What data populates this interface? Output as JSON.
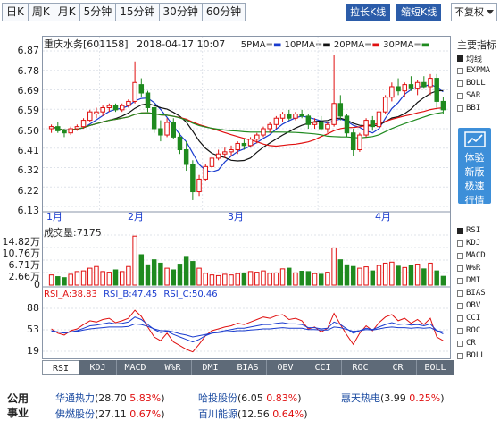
{
  "period_tabs": [
    {
      "label": "日K",
      "active": true
    },
    {
      "label": "周K",
      "active": false
    },
    {
      "label": "月K",
      "active": false
    },
    {
      "label": "5分钟",
      "active": false
    },
    {
      "label": "15分钟",
      "active": false
    },
    {
      "label": "30分钟",
      "active": false
    },
    {
      "label": "60分钟",
      "active": false
    }
  ],
  "toolbar": {
    "stretch_label": "拉长K线",
    "shrink_label": "缩短K线",
    "restore_option": "不复权"
  },
  "header": {
    "stock": "重庆水务[601158]",
    "datetime": "2018-04-17 10:07",
    "ma": [
      {
        "label": "5PMA=",
        "color": "#1a3ccf"
      },
      {
        "label": "10PMA=",
        "color": "#111111"
      },
      {
        "label": "20PMA=",
        "color": "#e01010"
      },
      {
        "label": "30PMA=",
        "color": "#1f8a1f"
      }
    ]
  },
  "price_axis": [
    "6.87",
    "6.78",
    "6.69",
    "6.59",
    "6.50",
    "6.41",
    "6.32",
    "6.22",
    "6.13"
  ],
  "month_labels": [
    "1月",
    "2月",
    "3月",
    "4月"
  ],
  "volume": {
    "title": "成交量:7175",
    "axis": [
      "14.82万",
      "10.76万",
      "6.71万",
      "2.66万",
      "0"
    ]
  },
  "rsi": {
    "label_a": "RSI_A:38.83",
    "label_b": "RSI_B:47.45",
    "label_c": "RSI_C:50.46",
    "axis": [
      "88",
      "53",
      "19"
    ]
  },
  "right_panel": {
    "title": "主要指标",
    "main_items": [
      {
        "label": "均线",
        "checked": true
      },
      {
        "label": "EXPMA",
        "checked": false
      },
      {
        "label": "BOLL",
        "checked": false
      },
      {
        "label": "SAR",
        "checked": false
      },
      {
        "label": "BBI",
        "checked": false
      }
    ],
    "sub_items": [
      {
        "label": "RSI",
        "checked": true
      },
      {
        "label": "KDJ",
        "checked": false
      },
      {
        "label": "MACD",
        "checked": false
      },
      {
        "label": "W%R",
        "checked": false
      },
      {
        "label": "DMI",
        "checked": false
      },
      {
        "label": "BIAS",
        "checked": false
      },
      {
        "label": "OBV",
        "checked": false
      },
      {
        "label": "CCI",
        "checked": false
      },
      {
        "label": "ROC",
        "checked": false
      },
      {
        "label": "CR",
        "checked": false
      },
      {
        "label": "BOLL",
        "checked": false
      }
    ],
    "promo_lines": [
      "体验",
      "新版",
      "极速",
      "行情"
    ]
  },
  "indicator_tabs": [
    "RSI",
    "KDJ",
    "MACD",
    "W%R",
    "DMI",
    "BIAS",
    "OBV",
    "CCI",
    "ROC",
    "CR",
    "BOLL"
  ],
  "related": {
    "label_line1": "公用",
    "label_line2": "事业",
    "stocks": [
      {
        "name": "华通热力",
        "price": "28.70",
        "change": "5.83%"
      },
      {
        "name": "哈投股份",
        "price": "6.05",
        "change": "0.83%"
      },
      {
        "name": "惠天热电",
        "price": "3.99",
        "change": "0.25%"
      },
      {
        "name": "佛燃股份",
        "price": "27.11",
        "change": "0.67%"
      },
      {
        "name": "百川能源",
        "price": "12.56",
        "change": "0.64%"
      }
    ]
  },
  "colors": {
    "up": "#e01010",
    "down": "#1f8a1f",
    "tab_active": "#1f55a5"
  },
  "chart_data": {
    "type": "candlestick",
    "y_range": [
      6.13,
      6.87
    ],
    "candles": [
      [
        6.5,
        6.52,
        6.48,
        6.51
      ],
      [
        6.51,
        6.53,
        6.48,
        6.49
      ],
      [
        6.49,
        6.5,
        6.46,
        6.48
      ],
      [
        6.48,
        6.51,
        6.47,
        6.5
      ],
      [
        6.5,
        6.52,
        6.49,
        6.51
      ],
      [
        6.51,
        6.55,
        6.5,
        6.54
      ],
      [
        6.54,
        6.59,
        6.53,
        6.58
      ],
      [
        6.57,
        6.6,
        6.55,
        6.58
      ],
      [
        6.58,
        6.61,
        6.56,
        6.6
      ],
      [
        6.6,
        6.62,
        6.58,
        6.61
      ],
      [
        6.61,
        6.62,
        6.58,
        6.59
      ],
      [
        6.59,
        6.62,
        6.58,
        6.61
      ],
      [
        6.61,
        6.64,
        6.6,
        6.63
      ],
      [
        6.63,
        6.82,
        6.62,
        6.72
      ],
      [
        6.71,
        6.74,
        6.65,
        6.67
      ],
      [
        6.67,
        6.68,
        6.58,
        6.6
      ],
      [
        6.6,
        6.62,
        6.48,
        6.5
      ],
      [
        6.5,
        6.54,
        6.44,
        6.47
      ],
      [
        6.47,
        6.55,
        6.46,
        6.53
      ],
      [
        6.53,
        6.55,
        6.45,
        6.46
      ],
      [
        6.46,
        6.48,
        6.38,
        6.4
      ],
      [
        6.4,
        6.44,
        6.3,
        6.33
      ],
      [
        6.33,
        6.35,
        6.16,
        6.2
      ],
      [
        6.2,
        6.28,
        6.18,
        6.26
      ],
      [
        6.26,
        6.33,
        6.25,
        6.32
      ],
      [
        6.32,
        6.37,
        6.31,
        6.36
      ],
      [
        6.36,
        6.4,
        6.35,
        6.38
      ],
      [
        6.38,
        6.41,
        6.36,
        6.39
      ],
      [
        6.39,
        6.42,
        6.37,
        6.4
      ],
      [
        6.4,
        6.44,
        6.38,
        6.43
      ],
      [
        6.43,
        6.45,
        6.4,
        6.42
      ],
      [
        6.42,
        6.46,
        6.41,
        6.45
      ],
      [
        6.45,
        6.48,
        6.43,
        6.47
      ],
      [
        6.47,
        6.51,
        6.46,
        6.5
      ],
      [
        6.5,
        6.53,
        6.48,
        6.52
      ],
      [
        6.52,
        6.56,
        6.5,
        6.55
      ],
      [
        6.55,
        6.58,
        6.53,
        6.57
      ],
      [
        6.57,
        6.59,
        6.54,
        6.55
      ],
      [
        6.55,
        6.58,
        6.54,
        6.57
      ],
      [
        6.57,
        6.59,
        6.55,
        6.56
      ],
      [
        6.56,
        6.57,
        6.5,
        6.52
      ],
      [
        6.52,
        6.55,
        6.5,
        6.53
      ],
      [
        6.53,
        6.56,
        6.49,
        6.5
      ],
      [
        6.5,
        6.53,
        6.48,
        6.52
      ],
      [
        6.52,
        6.85,
        6.51,
        6.62
      ],
      [
        6.62,
        6.66,
        6.54,
        6.56
      ],
      [
        6.56,
        6.57,
        6.46,
        6.48
      ],
      [
        6.48,
        6.5,
        6.37,
        6.4
      ],
      [
        6.4,
        6.48,
        6.39,
        6.47
      ],
      [
        6.47,
        6.55,
        6.46,
        6.54
      ],
      [
        6.54,
        6.56,
        6.49,
        6.51
      ],
      [
        6.51,
        6.6,
        6.5,
        6.58
      ],
      [
        6.58,
        6.66,
        6.57,
        6.65
      ],
      [
        6.65,
        6.72,
        6.63,
        6.7
      ],
      [
        6.7,
        6.74,
        6.66,
        6.68
      ],
      [
        6.68,
        6.72,
        6.65,
        6.71
      ],
      [
        6.71,
        6.75,
        6.68,
        6.69
      ],
      [
        6.69,
        6.73,
        6.66,
        6.72
      ],
      [
        6.72,
        6.75,
        6.69,
        6.7
      ],
      [
        6.7,
        6.76,
        6.66,
        6.74
      ],
      [
        6.74,
        6.76,
        6.6,
        6.63
      ],
      [
        6.63,
        6.65,
        6.57,
        6.59
      ]
    ],
    "volume": [
      3.0,
      2.5,
      2.2,
      3.2,
      4.0,
      4.2,
      5.0,
      5.5,
      4.0,
      3.8,
      4.5,
      4.0,
      5.5,
      14.5,
      9.0,
      6.0,
      7.5,
      6.5,
      5.0,
      4.5,
      6.2,
      8.5,
      7.0,
      5.0,
      3.5,
      3.0,
      2.8,
      3.2,
      3.0,
      3.4,
      3.6,
      4.0,
      3.8,
      4.2,
      3.5,
      3.6,
      4.8,
      5.0,
      3.6,
      4.1,
      4.0,
      3.4,
      3.2,
      3.8,
      11.0,
      7.5,
      6.0,
      5.5,
      5.0,
      5.4,
      4.2,
      5.8,
      6.5,
      6.8,
      5.6,
      5.2,
      5.8,
      6.2,
      4.8,
      6.5,
      4.2,
      2.6
    ],
    "rsi_a": [
      55,
      48,
      45,
      52,
      55,
      62,
      68,
      66,
      70,
      72,
      65,
      68,
      72,
      85,
      75,
      58,
      42,
      36,
      48,
      34,
      28,
      22,
      18,
      30,
      44,
      52,
      55,
      58,
      60,
      64,
      62,
      66,
      70,
      74,
      72,
      76,
      78,
      70,
      72,
      68,
      55,
      58,
      50,
      56,
      80,
      62,
      45,
      30,
      48,
      60,
      52,
      65,
      74,
      78,
      68,
      72,
      64,
      70,
      62,
      72,
      42,
      36
    ],
    "rsi_b": [
      52,
      50,
      48,
      50,
      52,
      56,
      60,
      61,
      63,
      65,
      63,
      64,
      66,
      74,
      70,
      62,
      54,
      49,
      51,
      46,
      42,
      38,
      34,
      38,
      44,
      48,
      50,
      52,
      54,
      56,
      56,
      58,
      60,
      62,
      62,
      64,
      65,
      63,
      63,
      62,
      57,
      57,
      55,
      56,
      66,
      62,
      55,
      48,
      52,
      56,
      54,
      58,
      62,
      65,
      62,
      63,
      61,
      62,
      60,
      63,
      52,
      47
    ],
    "rsi_c": [
      51,
      50,
      49,
      50,
      51,
      53,
      55,
      56,
      57,
      58,
      58,
      58,
      59,
      63,
      62,
      59,
      55,
      52,
      52,
      50,
      47,
      45,
      42,
      44,
      46,
      48,
      49,
      50,
      51,
      52,
      52,
      53,
      54,
      55,
      55,
      56,
      57,
      56,
      56,
      56,
      54,
      54,
      53,
      53,
      58,
      57,
      54,
      51,
      52,
      54,
      53,
      55,
      57,
      58,
      57,
      57,
      56,
      57,
      56,
      57,
      52,
      50
    ]
  }
}
